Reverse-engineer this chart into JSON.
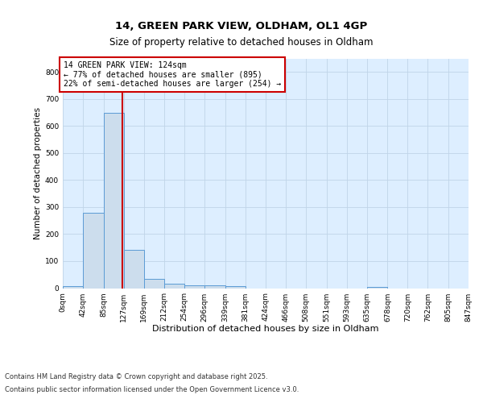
{
  "title1": "14, GREEN PARK VIEW, OLDHAM, OL1 4GP",
  "title2": "Size of property relative to detached houses in Oldham",
  "xlabel": "Distribution of detached houses by size in Oldham",
  "ylabel": "Number of detached properties",
  "bin_edges": [
    0,
    42,
    85,
    127,
    169,
    212,
    254,
    296,
    339,
    381,
    424,
    466,
    508,
    551,
    593,
    635,
    678,
    720,
    762,
    805,
    847
  ],
  "bar_heights": [
    8,
    278,
    648,
    142,
    35,
    15,
    10,
    10,
    8,
    0,
    0,
    0,
    0,
    0,
    0,
    5,
    0,
    0,
    0,
    0
  ],
  "bar_color": "#ccdded",
  "bar_edge_color": "#5b9bd5",
  "property_size": 124,
  "vline_color": "#cc0000",
  "annotation_text": "14 GREEN PARK VIEW: 124sqm\n← 77% of detached houses are smaller (895)\n22% of semi-detached houses are larger (254) →",
  "annotation_box_color": "#ffffff",
  "annotation_border_color": "#cc0000",
  "grid_color": "#c0d4e8",
  "background_color": "#ddeeff",
  "ylim": [
    0,
    850
  ],
  "yticks": [
    0,
    100,
    200,
    300,
    400,
    500,
    600,
    700,
    800
  ],
  "footer1": "Contains HM Land Registry data © Crown copyright and database right 2025.",
  "footer2": "Contains public sector information licensed under the Open Government Licence v3.0.",
  "tick_labels": [
    "0sqm",
    "42sqm",
    "85sqm",
    "127sqm",
    "169sqm",
    "212sqm",
    "254sqm",
    "296sqm",
    "339sqm",
    "381sqm",
    "424sqm",
    "466sqm",
    "508sqm",
    "551sqm",
    "593sqm",
    "635sqm",
    "678sqm",
    "720sqm",
    "762sqm",
    "805sqm",
    "847sqm"
  ],
  "title1_fontsize": 9.5,
  "title2_fontsize": 8.5,
  "xlabel_fontsize": 8,
  "ylabel_fontsize": 7.5,
  "tick_fontsize": 6.5,
  "annotation_fontsize": 7,
  "footer_fontsize": 6
}
